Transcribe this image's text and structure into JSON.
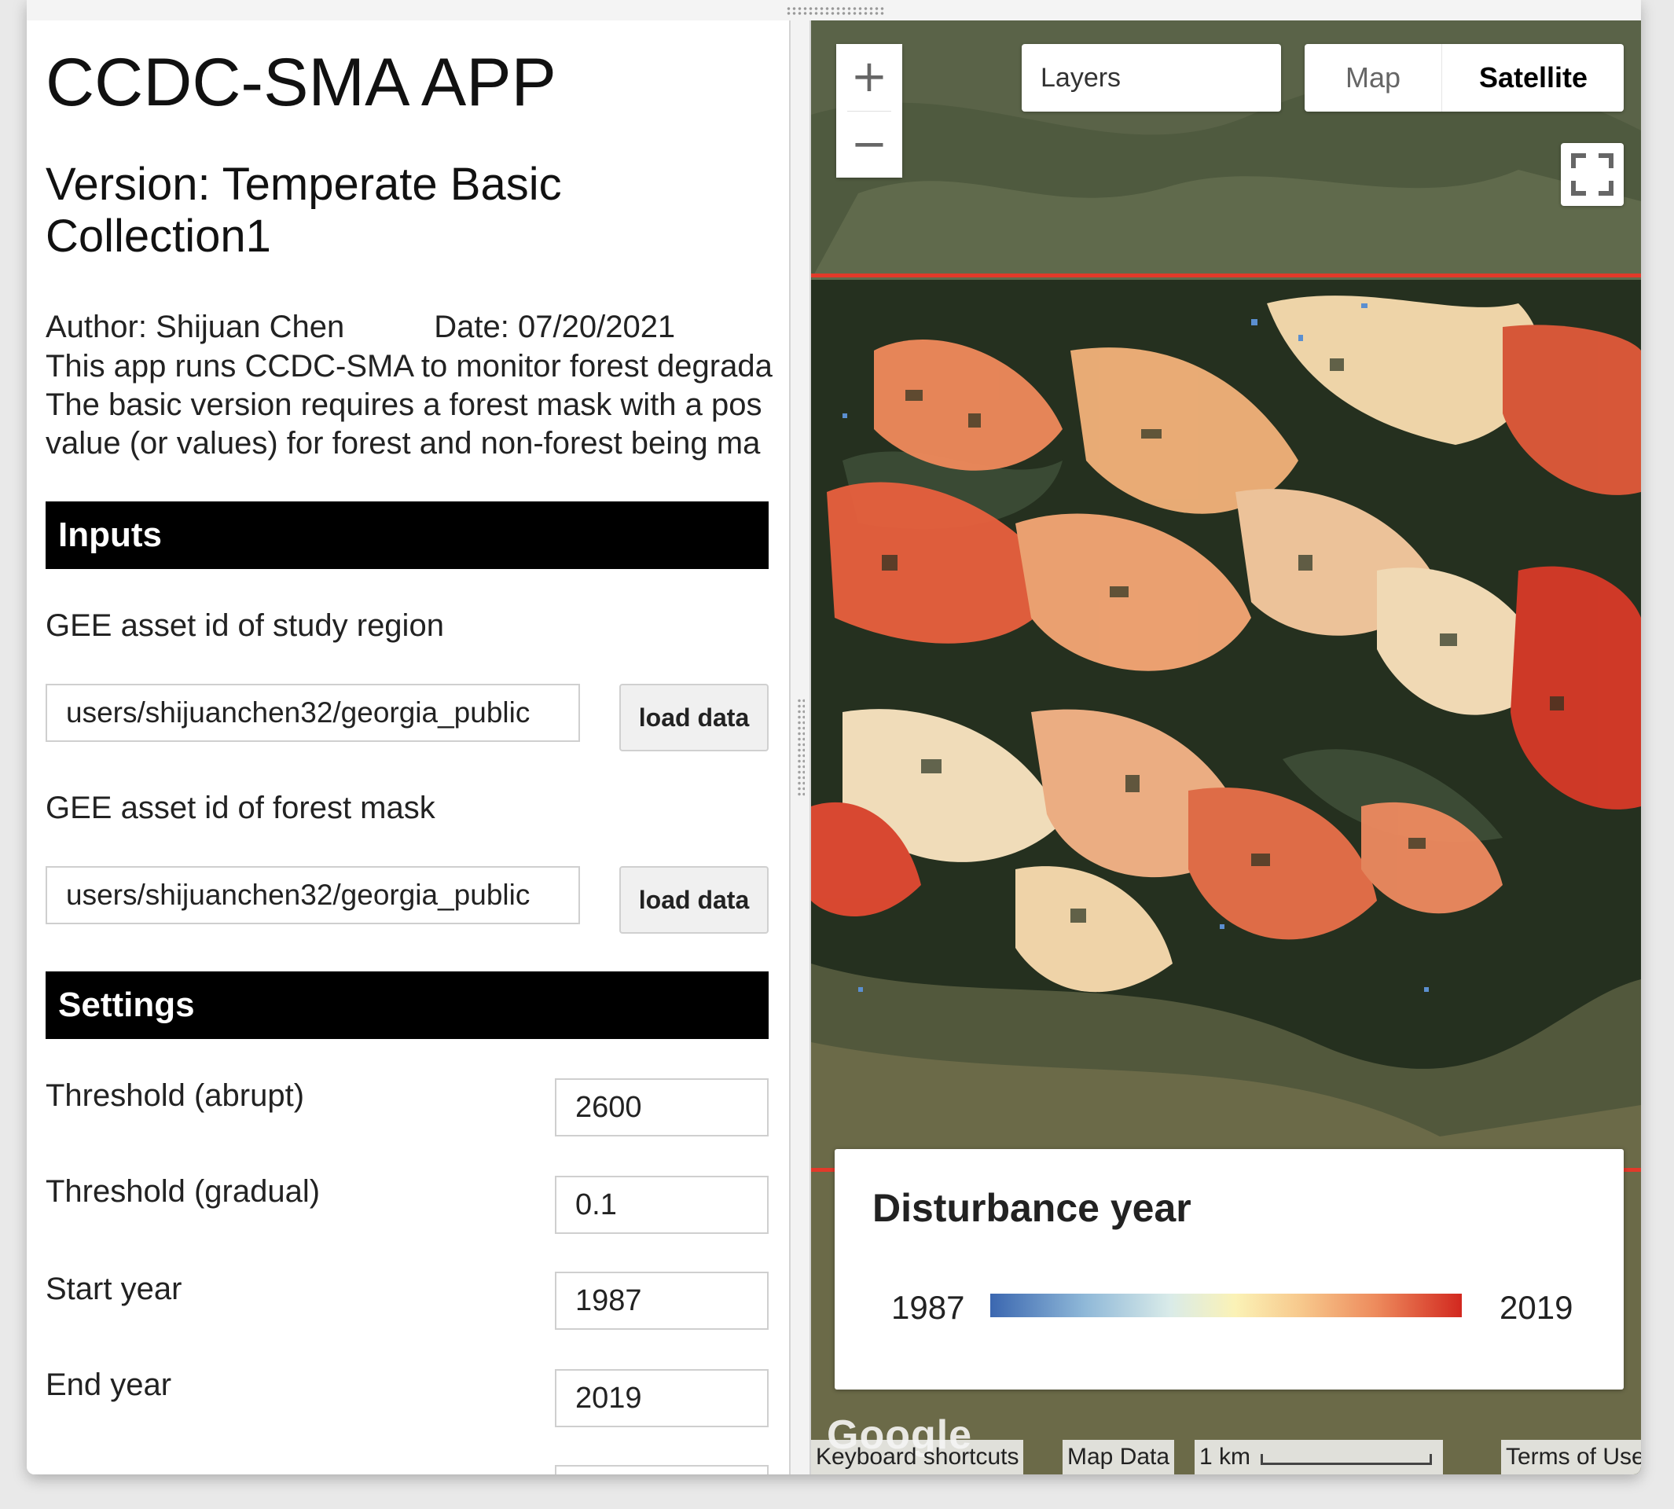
{
  "panel": {
    "title": "CCDC-SMA APP",
    "version": "Version: Temperate Basic Collection1",
    "author": "Author: Shijuan Chen",
    "date": "Date: 07/20/2021",
    "description_lines": [
      "This app runs CCDC-SMA to monitor forest degrada",
      "The basic version requires a forest mask with a pos",
      "value (or values) for forest and non-forest being ma"
    ],
    "inputs_header": "Inputs",
    "study_region_label": "GEE asset id of study region",
    "study_region_value": "users/shijuanchen32/georgia_public",
    "forest_mask_label": "GEE asset id of forest mask",
    "forest_mask_value": "users/shijuanchen32/georgia_public",
    "load_button": "load data",
    "settings_header": "Settings",
    "settings": [
      {
        "label": "Threshold (abrupt)",
        "value": "2600"
      },
      {
        "label": "Threshold (gradual)",
        "value": "0.1"
      },
      {
        "label": "Start year",
        "value": "1987"
      },
      {
        "label": "End year",
        "value": "2019"
      }
    ]
  },
  "map": {
    "zoom_in": "+",
    "zoom_out": "−",
    "layers": "Layers",
    "map_option": "Map",
    "satellite_option": "Satellite",
    "selected_map_type": "Satellite",
    "legend": {
      "title": "Disturbance year",
      "min": "1987",
      "max": "2019",
      "colors": [
        "#3b67b0",
        "#8fb8d8",
        "#fbf2b6",
        "#ed8a5c",
        "#d2281f"
      ]
    },
    "google_logo": "Google",
    "keyboard_shortcuts": "Keyboard shortcuts",
    "map_data": "Map Data",
    "scale": "1 km",
    "terms": "Terms of Use"
  }
}
